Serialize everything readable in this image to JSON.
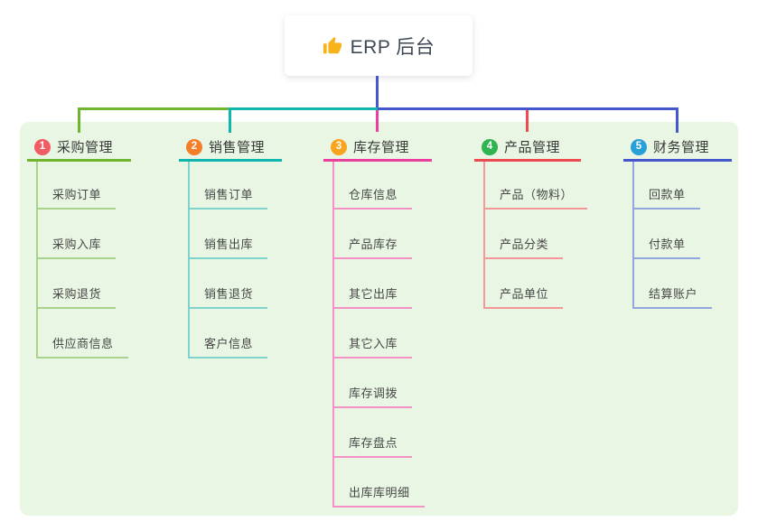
{
  "root": {
    "icon": "thumbs-up-icon",
    "label": "ERP 后台"
  },
  "colors": {
    "canvas_bg": "#ffffff",
    "panel_bg": "#e9f6e3",
    "connector": "#4457cb",
    "root_text": "#3e4854",
    "thumb_yellow": "#f7b319"
  },
  "branches": [
    {
      "index": "1",
      "label": "采购管理",
      "badge_color": "#f15b64",
      "line_color": "#70b52f",
      "light_color": "#abd28c",
      "children": [
        "采购订单",
        "采购入库",
        "采购退货",
        "供应商信息"
      ]
    },
    {
      "index": "2",
      "label": "销售管理",
      "badge_color": "#f57e2b",
      "line_color": "#0eb6ae",
      "light_color": "#7ed3cc",
      "children": [
        "销售订单",
        "销售出库",
        "销售退货",
        "客户信息"
      ]
    },
    {
      "index": "3",
      "label": "库存管理",
      "badge_color": "#f8a41d",
      "line_color": "#ea3f9f",
      "light_color": "#f492c5",
      "children": [
        "仓库信息",
        "产品库存",
        "其它出库",
        "其它入库",
        "库存调拨",
        "库存盘点",
        "出库库明细"
      ]
    },
    {
      "index": "4",
      "label": "产品管理",
      "badge_color": "#2fb44f",
      "line_color": "#f04a51",
      "light_color": "#f5969b",
      "children": [
        "产品（物料）",
        "产品分类",
        "产品单位"
      ]
    },
    {
      "index": "5",
      "label": "财务管理",
      "badge_color": "#27a0d8",
      "line_color": "#4457cb",
      "light_color": "#93a6e2",
      "children": [
        "回款单",
        "付款单",
        "结算账户"
      ]
    }
  ]
}
